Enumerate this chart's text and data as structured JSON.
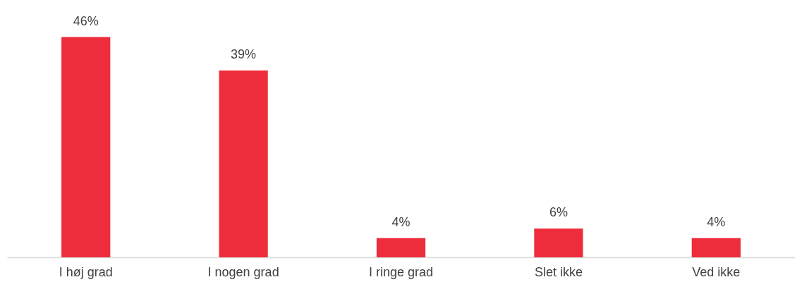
{
  "chart_data": {
    "type": "bar",
    "categories": [
      "I høj grad",
      "I nogen grad",
      "I ringe grad",
      "Slet ikke",
      "Ved ikke"
    ],
    "values": [
      46,
      39,
      4,
      6,
      4
    ],
    "color": "#ed2d3b",
    "value_labels": [
      "46%",
      "39%",
      "4%",
      "6%",
      "4%"
    ],
    "grid": false
  }
}
